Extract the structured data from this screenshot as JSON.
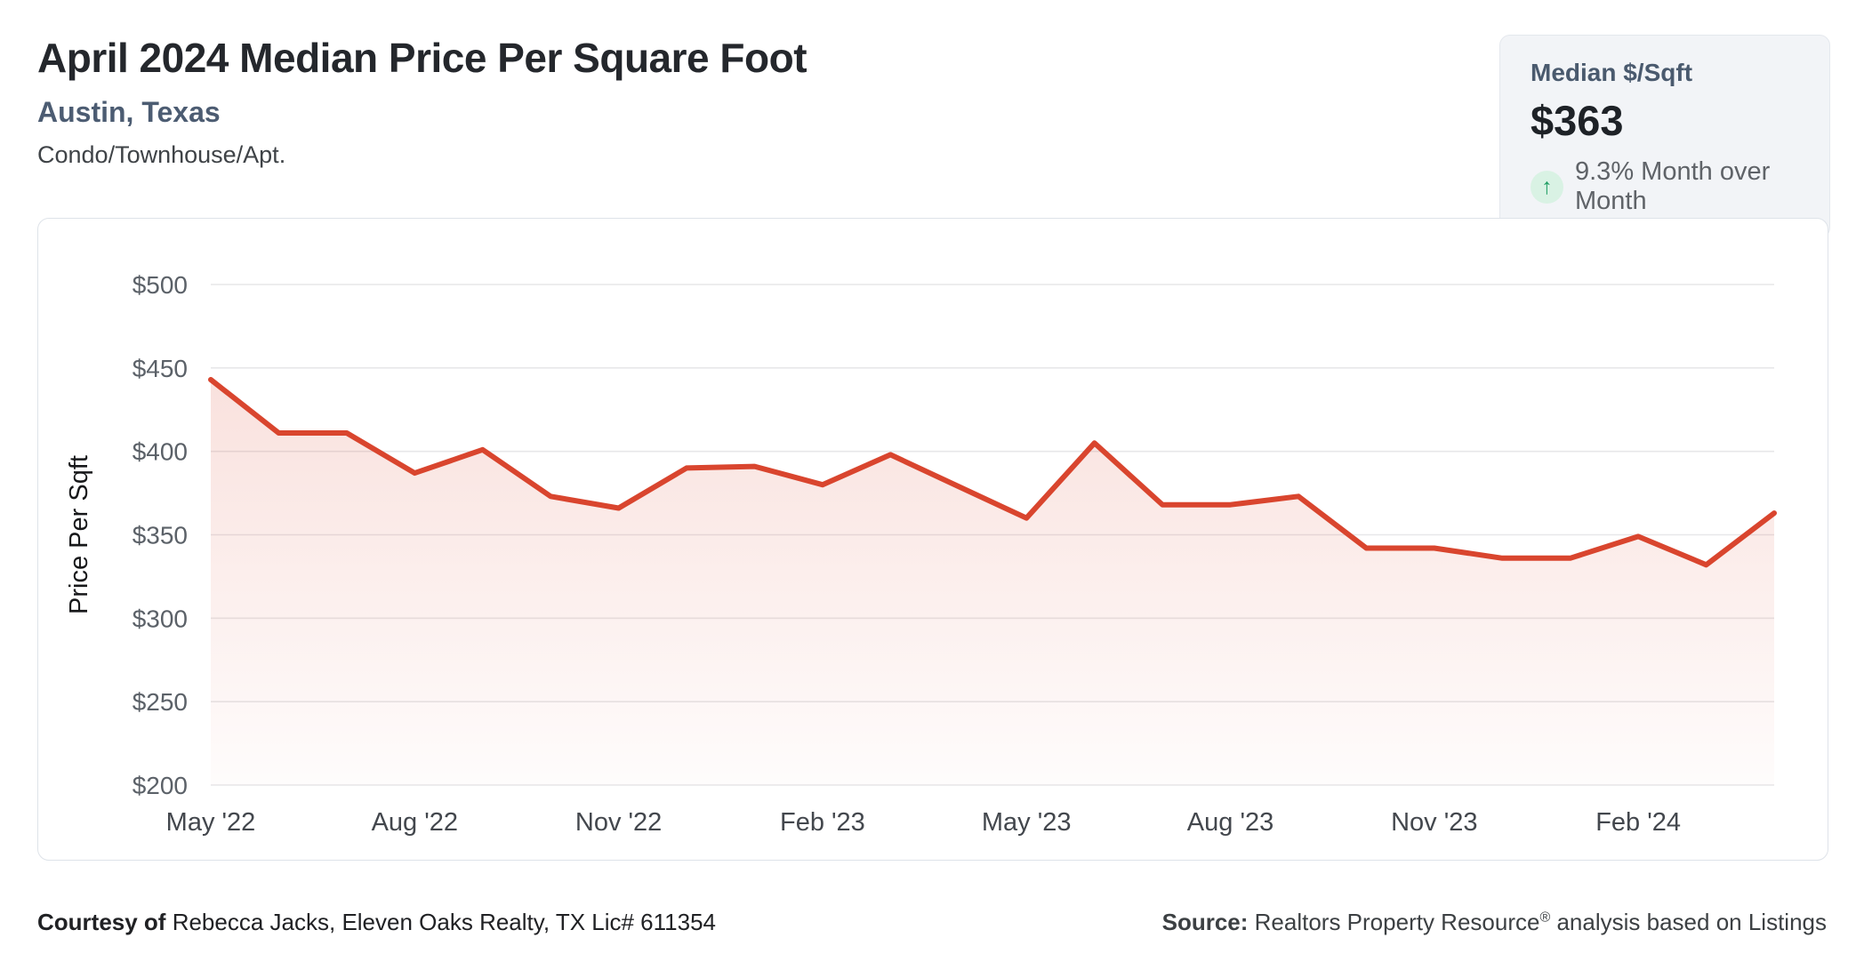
{
  "header": {
    "title": "April 2024 Median Price Per Square Foot",
    "location": "Austin, Texas",
    "property_type": "Condo/Townhouse/Apt."
  },
  "stat_card": {
    "label": "Median $/Sqft",
    "value": "$363",
    "arrow_icon": "up-arrow",
    "arrow_glyph": "↑",
    "change_text": "9.3% Month over Month",
    "arrow_color": "#1f9d63",
    "arrow_bg_color": "#d9f2e4"
  },
  "chart_data": {
    "type": "area",
    "title": "",
    "ylabel": "Price Per Sqft",
    "xlabel": "",
    "ylim": [
      200,
      500
    ],
    "grid": true,
    "legend": false,
    "x": [
      "May '22",
      "Jun '22",
      "Jul '22",
      "Aug '22",
      "Sep '22",
      "Oct '22",
      "Nov '22",
      "Dec '22",
      "Jan '23",
      "Feb '23",
      "Mar '23",
      "Apr '23",
      "May '23",
      "Jun '23",
      "Jul '23",
      "Aug '23",
      "Sep '23",
      "Oct '23",
      "Nov '23",
      "Dec '23",
      "Jan '24",
      "Feb '24",
      "Mar '24",
      "Apr '24"
    ],
    "values": [
      443,
      411,
      411,
      387,
      401,
      373,
      366,
      390,
      391,
      380,
      398,
      379,
      360,
      405,
      368,
      368,
      373,
      342,
      342,
      336,
      336,
      349,
      332,
      363
    ],
    "x_tick_labels": [
      "May '22",
      "Aug '22",
      "Nov '22",
      "Feb '23",
      "May '23",
      "Aug '23",
      "Nov '23",
      "Feb '24"
    ],
    "x_tick_every": 3,
    "y_tick_values": [
      500,
      450,
      400,
      350,
      300,
      250,
      200
    ],
    "y_tick_labels": [
      "$500",
      "$450",
      "$400",
      "$350",
      "$300",
      "$250",
      "$200"
    ],
    "line_color": "#d9452e",
    "fill_color_top": "rgba(218,70,47,0.16)",
    "fill_color_bottom": "rgba(218,70,47,0.015)",
    "grid_color": "#e7e7e9",
    "y_tick_color": "#5b6168",
    "x_tick_color": "#43474d",
    "ylabel_color": "#17181a"
  },
  "footer": {
    "courtesy_label": "Courtesy of",
    "courtesy_text": " Rebecca Jacks, Eleven Oaks Realty, TX Lic# 611354",
    "source_label": "Source:",
    "source_text_before_reg": " Realtors Property Resource",
    "source_reg": "®",
    "source_text_after_reg": " analysis based on Listings"
  }
}
